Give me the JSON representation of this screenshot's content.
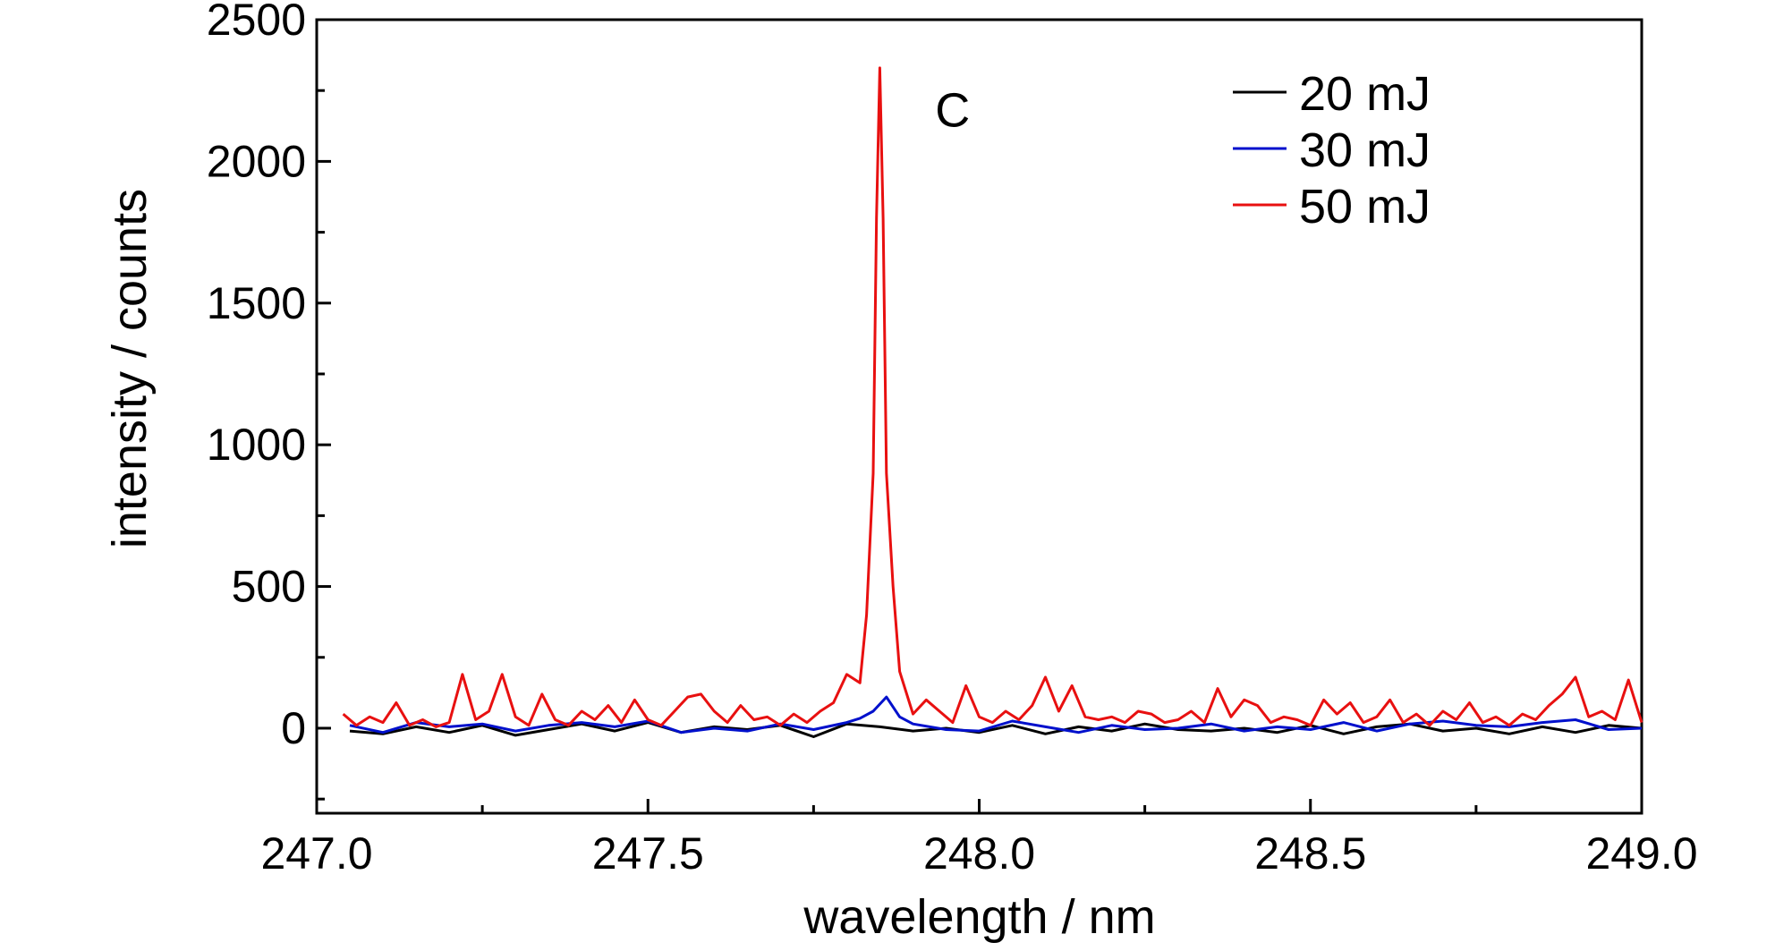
{
  "chart_data": {
    "type": "line",
    "xlabel": "wavelength / nm",
    "ylabel": "intensity / counts",
    "xlim": [
      247.0,
      249.0
    ],
    "ylim": [
      -300,
      2500
    ],
    "x_ticks": [
      247.0,
      247.5,
      248.0,
      248.5,
      249.0
    ],
    "x_tick_labels": [
      "247.0",
      "247.5",
      "248.0",
      "248.5",
      "249.0"
    ],
    "y_ticks": [
      0,
      500,
      1000,
      1500,
      2000,
      2500
    ],
    "y_tick_labels": [
      "0",
      "500",
      "1000",
      "1500",
      "2000",
      "2500"
    ],
    "grid": false,
    "legend_position": "top-right",
    "annotations": [
      {
        "text": "C",
        "x": 247.92,
        "y": 2180
      }
    ],
    "series": [
      {
        "name": "20 mJ",
        "color": "#000000",
        "x": [
          247.05,
          247.1,
          247.15,
          247.2,
          247.25,
          247.3,
          247.35,
          247.4,
          247.45,
          247.5,
          247.55,
          247.6,
          247.65,
          247.7,
          247.75,
          247.8,
          247.85,
          247.9,
          247.95,
          248.0,
          248.05,
          248.1,
          248.15,
          248.2,
          248.25,
          248.3,
          248.35,
          248.4,
          248.45,
          248.5,
          248.55,
          248.6,
          248.65,
          248.7,
          248.75,
          248.8,
          248.85,
          248.9,
          248.95,
          249.0
        ],
        "y": [
          -10,
          -20,
          5,
          -15,
          10,
          -25,
          -5,
          15,
          -10,
          20,
          -15,
          5,
          -5,
          10,
          -30,
          15,
          5,
          -10,
          0,
          -15,
          10,
          -20,
          5,
          -10,
          15,
          -5,
          -10,
          0,
          -15,
          10,
          -20,
          5,
          15,
          -10,
          0,
          -20,
          5,
          -15,
          10,
          0
        ]
      },
      {
        "name": "30 mJ",
        "color": "#0010cc",
        "x": [
          247.05,
          247.1,
          247.15,
          247.2,
          247.25,
          247.3,
          247.35,
          247.4,
          247.45,
          247.5,
          247.55,
          247.6,
          247.65,
          247.7,
          247.75,
          247.8,
          247.82,
          247.84,
          247.86,
          247.88,
          247.9,
          247.95,
          248.0,
          248.05,
          248.1,
          248.15,
          248.2,
          248.25,
          248.3,
          248.35,
          248.4,
          248.45,
          248.5,
          248.55,
          248.6,
          248.65,
          248.7,
          248.75,
          248.8,
          248.85,
          248.9,
          248.95,
          249.0
        ],
        "y": [
          10,
          -15,
          20,
          5,
          15,
          -10,
          10,
          20,
          5,
          25,
          -15,
          0,
          -10,
          15,
          -5,
          20,
          35,
          60,
          110,
          40,
          15,
          -5,
          -10,
          25,
          5,
          -15,
          10,
          -5,
          0,
          15,
          -10,
          5,
          -5,
          20,
          -10,
          15,
          25,
          10,
          5,
          20,
          30,
          -5,
          0
        ]
      },
      {
        "name": "50 mJ",
        "color": "#e81010",
        "x": [
          247.04,
          247.06,
          247.08,
          247.1,
          247.12,
          247.14,
          247.16,
          247.18,
          247.2,
          247.22,
          247.24,
          247.26,
          247.28,
          247.3,
          247.32,
          247.34,
          247.36,
          247.38,
          247.4,
          247.42,
          247.44,
          247.46,
          247.48,
          247.5,
          247.52,
          247.54,
          247.56,
          247.58,
          247.6,
          247.62,
          247.64,
          247.66,
          247.68,
          247.7,
          247.72,
          247.74,
          247.76,
          247.78,
          247.8,
          247.82,
          247.83,
          247.84,
          247.845,
          247.85,
          247.855,
          247.86,
          247.87,
          247.88,
          247.9,
          247.92,
          247.94,
          247.96,
          247.98,
          248.0,
          248.02,
          248.04,
          248.06,
          248.08,
          248.1,
          248.12,
          248.14,
          248.16,
          248.18,
          248.2,
          248.22,
          248.24,
          248.26,
          248.28,
          248.3,
          248.32,
          248.34,
          248.36,
          248.38,
          248.4,
          248.42,
          248.44,
          248.46,
          248.48,
          248.5,
          248.52,
          248.54,
          248.56,
          248.58,
          248.6,
          248.62,
          248.64,
          248.66,
          248.68,
          248.7,
          248.72,
          248.74,
          248.76,
          248.78,
          248.8,
          248.82,
          248.84,
          248.86,
          248.88,
          248.9,
          248.92,
          248.94,
          248.96,
          248.98,
          249.0
        ],
        "y": [
          50,
          10,
          40,
          20,
          90,
          10,
          30,
          5,
          20,
          190,
          30,
          60,
          190,
          40,
          10,
          120,
          30,
          10,
          60,
          30,
          80,
          20,
          100,
          30,
          10,
          60,
          110,
          120,
          60,
          20,
          80,
          30,
          40,
          10,
          50,
          20,
          60,
          90,
          190,
          160,
          400,
          900,
          1800,
          2330,
          1800,
          900,
          500,
          200,
          50,
          100,
          60,
          20,
          150,
          40,
          20,
          60,
          30,
          80,
          180,
          60,
          150,
          40,
          30,
          40,
          20,
          60,
          50,
          20,
          30,
          60,
          20,
          140,
          40,
          100,
          80,
          20,
          40,
          30,
          10,
          100,
          50,
          90,
          20,
          40,
          100,
          20,
          50,
          10,
          60,
          30,
          90,
          20,
          40,
          10,
          50,
          30,
          80,
          120,
          180,
          40,
          60,
          30,
          170,
          20
        ]
      }
    ]
  }
}
